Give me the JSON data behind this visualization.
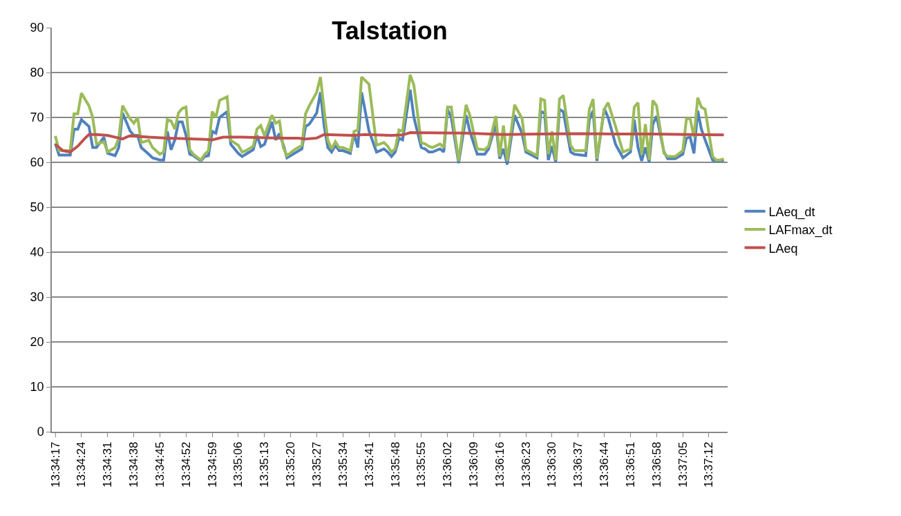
{
  "chart_data": {
    "type": "line",
    "title": "Talstation",
    "x": [
      13.57139,
      13.57167,
      13.5725,
      13.57278,
      13.57306,
      13.57333,
      13.57389,
      13.57417,
      13.57445,
      13.575,
      13.57528,
      13.57584,
      13.57611,
      13.57639,
      13.57695,
      13.57723,
      13.57751,
      13.57778,
      13.57834,
      13.57862,
      13.57917,
      13.57945,
      13.57972,
      13.58,
      13.58028,
      13.58055,
      13.58083,
      13.58111,
      13.58139,
      13.58166,
      13.58222,
      13.5825,
      13.58278,
      13.58306,
      13.58333,
      13.58361,
      13.58417,
      13.58444,
      13.585,
      13.58528,
      13.58556,
      13.58611,
      13.58639,
      13.58667,
      13.58695,
      13.5875,
      13.58778,
      13.58806,
      13.58834,
      13.58862,
      13.58917,
      13.58973,
      13.59,
      13.59028,
      13.59083,
      13.59111,
      13.59139,
      13.59166,
      13.59194,
      13.59222,
      13.5925,
      13.59277,
      13.59333,
      13.59361,
      13.59389,
      13.59417,
      13.59472,
      13.59528,
      13.59555,
      13.59583,
      13.59611,
      13.59639,
      13.59667,
      13.59695,
      13.59722,
      13.59778,
      13.59806,
      13.59861,
      13.59889,
      13.59917,
      13.59945,
      13.6,
      13.60028,
      13.60056,
      13.60084,
      13.60139,
      13.60194,
      13.60222,
      13.60277,
      13.60333,
      13.60361,
      13.60416,
      13.60444,
      13.60472,
      13.605,
      13.60555,
      13.60611,
      13.60639,
      13.60722,
      13.6075,
      13.60778,
      13.60806,
      13.60833,
      13.60861,
      13.60889,
      13.60917,
      13.60972,
      13.61,
      13.61084,
      13.61111,
      13.61139,
      13.61167,
      13.61222,
      13.6125,
      13.61306,
      13.61361,
      13.61417,
      13.61445,
      13.61473,
      13.615,
      13.61528,
      13.61556,
      13.61583,
      13.61611,
      13.61666,
      13.61694,
      13.6175,
      13.61806,
      13.61833,
      13.61861,
      13.61889,
      13.61917,
      13.61944,
      13.61972,
      13.62028,
      13.62055,
      13.62083,
      13.62111
    ],
    "series": [
      {
        "name": "LAeq_dt",
        "color": "#4f81bd",
        "values": [
          64.2,
          61.6,
          61.6,
          67.4,
          67.4,
          69.5,
          68,
          63.3,
          63.3,
          65.6,
          62,
          61.5,
          63.3,
          71,
          67,
          66,
          66,
          63.3,
          61.8,
          61,
          60.5,
          60.5,
          66.9,
          62.8,
          65,
          69,
          69,
          66,
          61.8,
          61.5,
          60.3,
          61.3,
          61.5,
          66.9,
          66.5,
          70,
          71.3,
          64,
          62,
          61.3,
          61.8,
          62.8,
          66,
          63.5,
          64,
          69,
          65,
          66.4,
          64,
          61,
          62,
          63,
          68,
          68.5,
          71,
          75.6,
          68,
          63.3,
          62.3,
          63.8,
          62.6,
          62.6,
          62,
          66.4,
          63.3,
          75.6,
          67,
          62.3,
          62.6,
          63,
          62.3,
          61.3,
          62.3,
          65.4,
          65,
          76.2,
          70,
          63.3,
          63,
          62.3,
          62.3,
          63,
          62.3,
          71.8,
          70,
          59.8,
          70.5,
          66.9,
          61.8,
          61.8,
          63,
          68.5,
          60.8,
          63,
          59.5,
          70.5,
          66.4,
          62.3,
          61,
          71.3,
          71,
          60.5,
          63.6,
          60,
          71.8,
          71.3,
          62.3,
          61.8,
          61.5,
          69.5,
          71.5,
          60.3,
          72,
          70,
          64,
          61,
          62.3,
          69.5,
          63.3,
          60.3,
          63.3,
          60,
          68.5,
          70.3,
          62.3,
          60.8,
          60.8,
          61.8,
          65.4,
          65.6,
          62,
          71.5,
          67.4,
          65,
          60.5,
          60.3,
          60.3,
          60.5
        ]
      },
      {
        "name": "LAFmax_dt",
        "color": "#9bbb59",
        "values": [
          65.9,
          62.6,
          62.6,
          70.8,
          70.8,
          75.4,
          72.6,
          70,
          64.1,
          64.6,
          62.3,
          63.3,
          65.4,
          72.6,
          69.7,
          68.7,
          70,
          64.4,
          64.9,
          63.3,
          61.8,
          62.3,
          69.5,
          69.2,
          67.4,
          71,
          72,
          72.3,
          62.8,
          61.8,
          60.5,
          61.8,
          62.6,
          71.3,
          70,
          73.8,
          74.6,
          64.9,
          63.8,
          62.3,
          62.6,
          63.6,
          67.4,
          68.2,
          65.9,
          70.5,
          68.7,
          69.2,
          63.3,
          61.5,
          62.8,
          63.8,
          70.8,
          72.6,
          75.6,
          79,
          71.5,
          64.9,
          63,
          64.6,
          63.3,
          63.3,
          62.6,
          66.9,
          67.2,
          79,
          77.4,
          63.8,
          64.1,
          64.4,
          63.6,
          62.3,
          63,
          67.2,
          66.9,
          79.5,
          77.2,
          64.4,
          64.1,
          63.6,
          63.3,
          64.1,
          63.3,
          72.3,
          72.3,
          60.3,
          72.8,
          70.5,
          63,
          62.8,
          63.6,
          70.3,
          61.3,
          68.2,
          60.3,
          72.8,
          69.7,
          62.8,
          61.5,
          74.1,
          73.8,
          61.8,
          66.9,
          60.5,
          74.1,
          74.9,
          63.8,
          62.6,
          62.6,
          71.8,
          74.1,
          60.8,
          71.8,
          73.3,
          68,
          62.3,
          63,
          72.3,
          73.3,
          61.8,
          68.5,
          60.5,
          73.8,
          72.6,
          62,
          61.3,
          61.3,
          62.6,
          69.7,
          69.7,
          65.6,
          74.4,
          72.3,
          71.8,
          61.3,
          60.5,
          60.5,
          60.8
        ]
      },
      {
        "name": "LAeq",
        "color": "#c0504d",
        "x": [
          13.57139,
          13.57167,
          13.57195,
          13.5725,
          13.57306,
          13.57361,
          13.57389,
          13.57445,
          13.57528,
          13.57584,
          13.57639,
          13.57667,
          13.57695,
          13.57834,
          13.57972,
          13.5825,
          13.58306,
          13.58389,
          13.58528,
          13.58806,
          13.58945,
          13.59,
          13.59083,
          13.59139,
          13.59361,
          13.59444,
          13.59639,
          13.59722,
          13.59778,
          13.60194,
          13.60472,
          13.6075,
          13.61028,
          13.61306,
          13.61583,
          13.61861,
          13.62111
        ],
        "values": [
          64,
          63.3,
          62.6,
          62.3,
          63.6,
          65.4,
          66.2,
          66.2,
          66,
          65.6,
          65.2,
          65.6,
          65.9,
          65.6,
          65.4,
          65.1,
          65,
          65.6,
          65.6,
          65.4,
          65.4,
          65.2,
          65.4,
          66.2,
          66,
          66.2,
          66,
          66.1,
          66.6,
          66.5,
          66.2,
          66.3,
          66.4,
          66.3,
          66.3,
          66.2,
          66.1
        ]
      }
    ],
    "xlim": [
      13.57113,
      13.62139
    ],
    "xticks": [
      {
        "value": 13.57139,
        "label": "13:34:17"
      },
      {
        "value": 13.57333,
        "label": "13:34:24"
      },
      {
        "value": 13.57528,
        "label": "13:34:31"
      },
      {
        "value": 13.57722,
        "label": "13:34:38"
      },
      {
        "value": 13.57917,
        "label": "13:34:45"
      },
      {
        "value": 13.58111,
        "label": "13:34:52"
      },
      {
        "value": 13.58306,
        "label": "13:34:59"
      },
      {
        "value": 13.585,
        "label": "13:35:06"
      },
      {
        "value": 13.58694,
        "label": "13:35:13"
      },
      {
        "value": 13.58889,
        "label": "13:35:20"
      },
      {
        "value": 13.59083,
        "label": "13:35:27"
      },
      {
        "value": 13.59278,
        "label": "13:35:34"
      },
      {
        "value": 13.59472,
        "label": "13:35:41"
      },
      {
        "value": 13.59667,
        "label": "13:35:48"
      },
      {
        "value": 13.59861,
        "label": "13:35:55"
      },
      {
        "value": 13.60056,
        "label": "13:36:02"
      },
      {
        "value": 13.6025,
        "label": "13:36:09"
      },
      {
        "value": 13.60444,
        "label": "13:36:16"
      },
      {
        "value": 13.60639,
        "label": "13:36:23"
      },
      {
        "value": 13.60833,
        "label": "13:36:30"
      },
      {
        "value": 13.61028,
        "label": "13:36:37"
      },
      {
        "value": 13.61222,
        "label": "13:36:44"
      },
      {
        "value": 13.61417,
        "label": "13:36:51"
      },
      {
        "value": 13.61611,
        "label": "13:36:58"
      },
      {
        "value": 13.61806,
        "label": "13:37:05"
      },
      {
        "value": 13.62,
        "label": "13:37:12"
      }
    ],
    "ylim": [
      0,
      90
    ],
    "yticks": [
      0,
      10,
      20,
      30,
      40,
      50,
      60,
      70,
      80,
      90
    ],
    "grid": "y",
    "legend": "right",
    "marker": "none",
    "line_style": "solid"
  }
}
